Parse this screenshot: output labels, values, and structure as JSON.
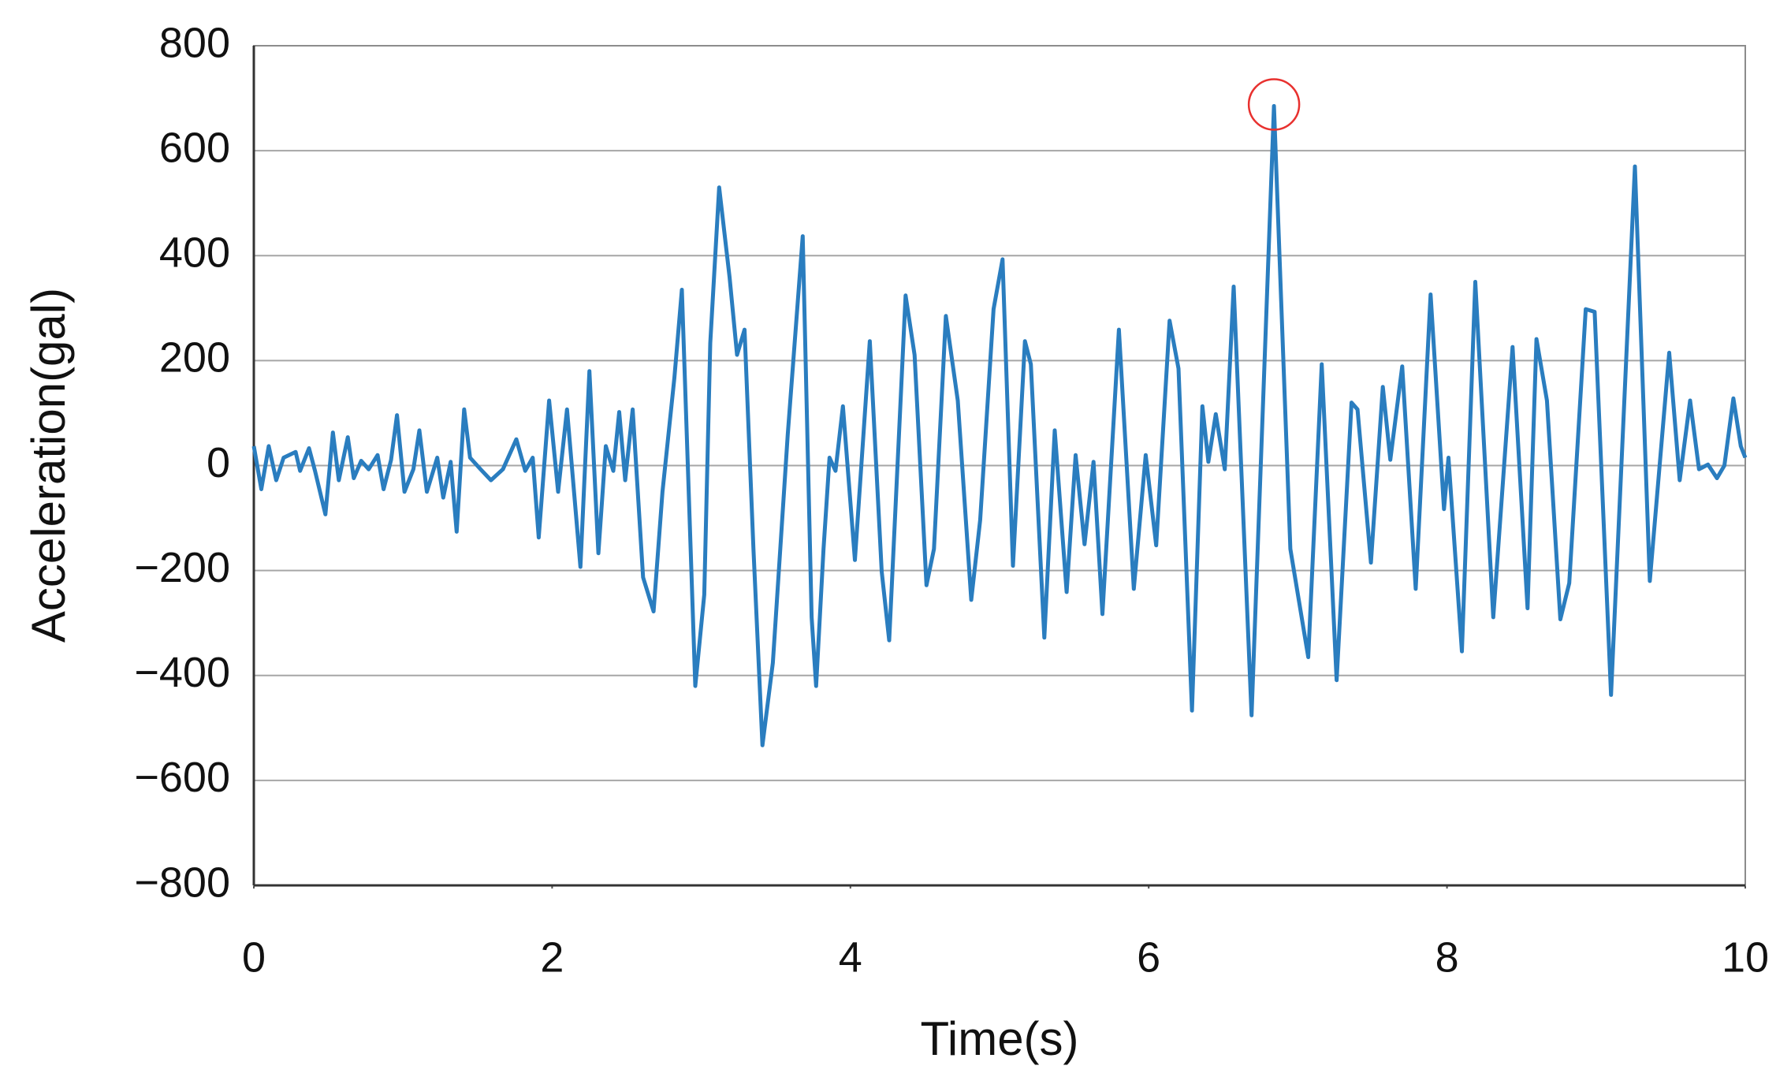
{
  "chart_data": {
    "type": "line",
    "x_label": "Time(s)",
    "y_label": "Acceleration(gal)",
    "xlim": [
      0,
      10
    ],
    "xticks": [
      0,
      2,
      4,
      6,
      8,
      10
    ],
    "ylim": [
      -800,
      800
    ],
    "yticks": [
      {
        "value": -800,
        "label": "−800"
      },
      {
        "value": -600,
        "label": "−600"
      },
      {
        "value": -400,
        "label": "−400"
      },
      {
        "value": -200,
        "label": "−200"
      },
      0,
      200,
      400,
      600,
      800
    ],
    "grid": true,
    "color": "#2a7dbf",
    "annotation_color": "#e8312f",
    "x": [
      0,
      0.05,
      0.1,
      0.15,
      0.2,
      0.28,
      0.31,
      0.37,
      0.41,
      0.48,
      0.53,
      0.57,
      0.63,
      0.67,
      0.72,
      0.77,
      0.83,
      0.87,
      0.92,
      0.96,
      1.01,
      1.07,
      1.11,
      1.16,
      1.23,
      1.27,
      1.32,
      1.36,
      1.41,
      1.45,
      1.52,
      1.59,
      1.67,
      1.76,
      1.82,
      1.87,
      1.91,
      1.98,
      2.04,
      2.1,
      2.19,
      2.25,
      2.31,
      2.36,
      2.41,
      2.45,
      2.49,
      2.54,
      2.61,
      2.68,
      2.74,
      2.82,
      2.87,
      2.96,
      3.02,
      3.06,
      3.12,
      3.19,
      3.24,
      3.29,
      3.35,
      3.41,
      3.48,
      3.58,
      3.68,
      3.74,
      3.77,
      3.82,
      3.86,
      3.9,
      3.95,
      4.03,
      4.13,
      4.21,
      4.26,
      4.37,
      4.43,
      4.51,
      4.56,
      4.64,
      4.72,
      4.81,
      4.87,
      4.96,
      5.02,
      5.09,
      5.17,
      5.21,
      5.3,
      5.37,
      5.45,
      5.51,
      5.57,
      5.63,
      5.69,
      5.8,
      5.9,
      5.98,
      6.05,
      6.14,
      6.2,
      6.29,
      6.36,
      6.4,
      6.45,
      6.51,
      6.57,
      6.69,
      6.84,
      6.95,
      7.07,
      7.16,
      7.26,
      7.36,
      7.4,
      7.49,
      7.57,
      7.62,
      7.7,
      7.79,
      7.89,
      7.98,
      8.01,
      8.1,
      8.19,
      8.31,
      8.44,
      8.54,
      8.6,
      8.67,
      8.76,
      8.82,
      8.93,
      8.99,
      9.1,
      9.26,
      9.36,
      9.49,
      9.56,
      9.63,
      9.69,
      9.75,
      9.81,
      9.86,
      9.92,
      9.97,
      10
    ],
    "values": [
      37,
      -45,
      37,
      -28,
      15,
      26,
      -10,
      33,
      -10,
      -93,
      63,
      -28,
      54,
      -24,
      9,
      -7,
      20,
      -45,
      11,
      96,
      -50,
      -7,
      67,
      -50,
      15,
      -61,
      7,
      -126,
      107,
      15,
      -7,
      -28,
      -7,
      50,
      -10,
      15,
      -137,
      124,
      -50,
      107,
      -193,
      180,
      -167,
      37,
      -10,
      102,
      -28,
      107,
      -213,
      -278,
      -50,
      167,
      335,
      -420,
      -246,
      233,
      530,
      359,
      211,
      259,
      -159,
      -533,
      -376,
      59,
      437,
      -289,
      -420,
      -159,
      15,
      -10,
      113,
      -180,
      237,
      -202,
      -333,
      324,
      211,
      -228,
      -159,
      285,
      124,
      -256,
      -104,
      298,
      393,
      -191,
      237,
      193,
      -328,
      67,
      -241,
      20,
      -150,
      7,
      -283,
      259,
      -235,
      20,
      -152,
      276,
      185,
      -467,
      113,
      7,
      98,
      -7,
      341,
      -476,
      685,
      -159,
      -365,
      193,
      -409,
      120,
      107,
      -185,
      150,
      11,
      189,
      -235,
      326,
      -83,
      15,
      -354,
      350,
      -289,
      226,
      -272,
      241,
      124,
      -293,
      -224,
      298,
      293,
      -437,
      570,
      -220,
      215,
      -28,
      124,
      -7,
      2,
      -24,
      0,
      128,
      37,
      15
    ]
  }
}
